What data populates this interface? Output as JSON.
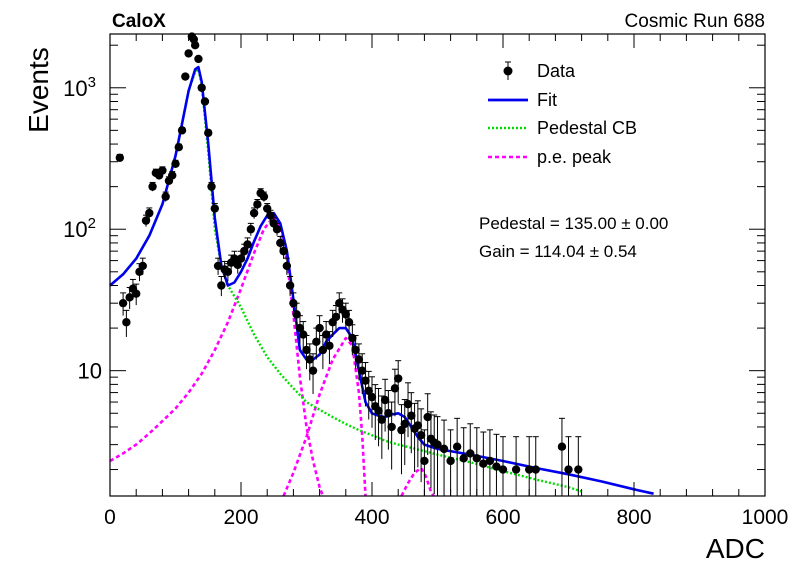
{
  "header": {
    "experiment": "CaloX",
    "run_label": "Cosmic Run 688"
  },
  "chart_data": {
    "type": "scatter",
    "title": "",
    "xlabel": "ADC",
    "ylabel": "Events",
    "xlim": [
      0,
      1000
    ],
    "ylim": [
      1.3,
      2400
    ],
    "y_scale": "log",
    "grid": false,
    "legend_position": "top-right",
    "x_ticks": [
      "0",
      "200",
      "400",
      "600",
      "800",
      "1000"
    ],
    "y_ticks": [
      "10",
      "10²",
      "10³"
    ],
    "y_tick_values": [
      10,
      100,
      1000
    ],
    "legend": [
      {
        "label": "Data",
        "style": "marker-with-errorbar",
        "color": "#000000"
      },
      {
        "label": "Fit",
        "style": "solid",
        "color": "#0000ee"
      },
      {
        "label": "Pedestal CB",
        "style": "dotted",
        "color": "#00dd00"
      },
      {
        "label": "p.e. peak",
        "style": "dashed",
        "color": "#ff00ff"
      }
    ],
    "annotations": {
      "pedestal": "Pedestal = 135.00 ± 0.00",
      "gain": "Gain = 114.04 ± 0.54"
    },
    "series": [
      {
        "name": "Data",
        "kind": "points",
        "points": [
          [
            15,
            320
          ],
          [
            20,
            30
          ],
          [
            25,
            22
          ],
          [
            30,
            33
          ],
          [
            35,
            38
          ],
          [
            40,
            35
          ],
          [
            45,
            50
          ],
          [
            50,
            55
          ],
          [
            55,
            115
          ],
          [
            60,
            130
          ],
          [
            65,
            200
          ],
          [
            70,
            250
          ],
          [
            75,
            240
          ],
          [
            80,
            260
          ],
          [
            85,
            170
          ],
          [
            90,
            220
          ],
          [
            95,
            240
          ],
          [
            100,
            290
          ],
          [
            105,
            380
          ],
          [
            110,
            500
          ],
          [
            115,
            1200
          ],
          [
            120,
            1750
          ],
          [
            125,
            2300
          ],
          [
            128,
            2200
          ],
          [
            130,
            2000
          ],
          [
            135,
            1600
          ],
          [
            140,
            1000
          ],
          [
            145,
            800
          ],
          [
            150,
            480
          ],
          [
            155,
            200
          ],
          [
            160,
            140
          ],
          [
            165,
            55
          ],
          [
            170,
            40
          ],
          [
            175,
            52
          ],
          [
            180,
            50
          ],
          [
            185,
            58
          ],
          [
            190,
            62
          ],
          [
            195,
            56
          ],
          [
            200,
            62
          ],
          [
            205,
            70
          ],
          [
            210,
            78
          ],
          [
            215,
            100
          ],
          [
            220,
            130
          ],
          [
            225,
            150
          ],
          [
            230,
            180
          ],
          [
            235,
            170
          ],
          [
            240,
            140
          ],
          [
            245,
            125
          ],
          [
            250,
            110
          ],
          [
            255,
            100
          ],
          [
            260,
            80
          ],
          [
            265,
            70
          ],
          [
            270,
            55
          ],
          [
            275,
            40
          ],
          [
            280,
            30
          ],
          [
            285,
            25
          ],
          [
            290,
            20
          ],
          [
            295,
            18
          ],
          [
            300,
            14
          ],
          [
            305,
            12
          ],
          [
            310,
            10
          ],
          [
            315,
            16
          ],
          [
            320,
            20
          ],
          [
            325,
            14
          ],
          [
            330,
            18
          ],
          [
            335,
            15
          ],
          [
            340,
            22
          ],
          [
            345,
            24
          ],
          [
            350,
            30
          ],
          [
            355,
            27
          ],
          [
            360,
            25
          ],
          [
            365,
            22
          ],
          [
            370,
            17
          ],
          [
            375,
            14
          ],
          [
            380,
            12
          ],
          [
            385,
            10
          ],
          [
            390,
            8.5
          ],
          [
            395,
            7.2
          ],
          [
            400,
            6.5
          ],
          [
            405,
            5.6
          ],
          [
            410,
            5.2
          ],
          [
            415,
            4.5
          ],
          [
            420,
            6.2
          ],
          [
            425,
            5.0
          ],
          [
            430,
            4.0
          ],
          [
            435,
            7.5
          ],
          [
            440,
            8.8
          ],
          [
            445,
            3.8
          ],
          [
            450,
            4.2
          ],
          [
            455,
            5.8
          ],
          [
            460,
            4.8
          ],
          [
            465,
            3.9
          ],
          [
            470,
            4.1
          ],
          [
            475,
            3.5
          ],
          [
            480,
            2.3
          ],
          [
            485,
            4.7
          ],
          [
            490,
            3.3
          ],
          [
            495,
            3.1
          ],
          [
            500,
            3.0
          ],
          [
            510,
            2.8
          ],
          [
            520,
            2.3
          ],
          [
            530,
            2.9
          ],
          [
            540,
            2.4
          ],
          [
            550,
            2.6
          ],
          [
            560,
            2.4
          ],
          [
            570,
            2.2
          ],
          [
            580,
            2.3
          ],
          [
            590,
            2.1
          ],
          [
            600,
            2.0
          ],
          [
            620,
            2.0
          ],
          [
            640,
            2.0
          ],
          [
            650,
            2.0
          ],
          [
            690,
            2.9
          ],
          [
            700,
            2.0
          ],
          [
            715,
            2.0
          ]
        ]
      },
      {
        "name": "Fit",
        "kind": "line",
        "points": [
          [
            0,
            40
          ],
          [
            20,
            48
          ],
          [
            40,
            62
          ],
          [
            60,
            90
          ],
          [
            80,
            150
          ],
          [
            100,
            330
          ],
          [
            110,
            560
          ],
          [
            120,
            950
          ],
          [
            130,
            1350
          ],
          [
            135,
            1400
          ],
          [
            140,
            1100
          ],
          [
            150,
            400
          ],
          [
            160,
            120
          ],
          [
            170,
            55
          ],
          [
            180,
            40
          ],
          [
            190,
            42
          ],
          [
            200,
            50
          ],
          [
            210,
            62
          ],
          [
            220,
            82
          ],
          [
            230,
            105
          ],
          [
            240,
            125
          ],
          [
            250,
            130
          ],
          [
            260,
            110
          ],
          [
            270,
            70
          ],
          [
            280,
            32
          ],
          [
            290,
            14
          ],
          [
            300,
            12
          ],
          [
            310,
            12
          ],
          [
            320,
            13
          ],
          [
            330,
            16
          ],
          [
            340,
            18
          ],
          [
            350,
            20
          ],
          [
            360,
            20
          ],
          [
            370,
            17
          ],
          [
            380,
            10
          ],
          [
            390,
            6
          ],
          [
            400,
            5
          ],
          [
            410,
            4.8
          ],
          [
            420,
            4.7
          ],
          [
            430,
            4.9
          ],
          [
            440,
            5.0
          ],
          [
            450,
            4.7
          ],
          [
            460,
            4.0
          ],
          [
            470,
            3.4
          ],
          [
            480,
            3.0
          ],
          [
            500,
            2.8
          ],
          [
            550,
            2.55
          ],
          [
            600,
            2.3
          ],
          [
            650,
            2.05
          ],
          [
            700,
            1.85
          ],
          [
            750,
            1.65
          ],
          [
            800,
            1.45
          ],
          [
            830,
            1.35
          ]
        ]
      },
      {
        "name": "Pedestal CB",
        "kind": "line",
        "points": [
          [
            0,
            40
          ],
          [
            20,
            48
          ],
          [
            40,
            62
          ],
          [
            60,
            90
          ],
          [
            80,
            150
          ],
          [
            100,
            330
          ],
          [
            110,
            560
          ],
          [
            120,
            950
          ],
          [
            130,
            1300
          ],
          [
            135,
            1350
          ],
          [
            140,
            1050
          ],
          [
            150,
            350
          ],
          [
            160,
            100
          ],
          [
            170,
            55
          ],
          [
            180,
            40
          ],
          [
            200,
            28
          ],
          [
            220,
            18
          ],
          [
            240,
            12.5
          ],
          [
            260,
            9.5
          ],
          [
            280,
            7.5
          ],
          [
            300,
            6
          ],
          [
            320,
            5.3
          ],
          [
            340,
            4.7
          ],
          [
            360,
            4.2
          ],
          [
            380,
            3.8
          ],
          [
            400,
            3.5
          ],
          [
            420,
            3.2
          ],
          [
            440,
            3.0
          ],
          [
            460,
            2.85
          ],
          [
            480,
            2.7
          ],
          [
            500,
            2.55
          ],
          [
            550,
            2.25
          ],
          [
            600,
            1.95
          ],
          [
            650,
            1.7
          ],
          [
            700,
            1.5
          ],
          [
            720,
            1.4
          ]
        ]
      },
      {
        "name": "p.e. peak",
        "kind": "line",
        "points": [
          [
            0,
            2.3
          ],
          [
            20,
            2.6
          ],
          [
            40,
            3.0
          ],
          [
            60,
            3.6
          ],
          [
            80,
            4.4
          ],
          [
            100,
            5.4
          ],
          [
            120,
            7
          ],
          [
            140,
            9.5
          ],
          [
            160,
            14
          ],
          [
            180,
            22
          ],
          [
            200,
            38
          ],
          [
            220,
            68
          ],
          [
            235,
            100
          ],
          [
            250,
            123
          ],
          [
            260,
            105
          ],
          [
            270,
            60
          ],
          [
            280,
            25
          ],
          [
            290,
            9
          ],
          [
            300,
            4
          ],
          [
            310,
            2.3
          ],
          [
            320,
            1.5
          ],
          [
            325,
            1.3
          ]
        ]
      },
      {
        "name": "p.e. peak",
        "kind": "line",
        "points": [
          [
            265,
            1.3
          ],
          [
            280,
            1.9
          ],
          [
            300,
            3.4
          ],
          [
            320,
            6.8
          ],
          [
            340,
            12
          ],
          [
            360,
            17
          ],
          [
            370,
            15
          ],
          [
            380,
            7
          ],
          [
            385,
            3.5
          ],
          [
            390,
            1.3
          ]
        ]
      },
      {
        "name": "p.e. peak",
        "kind": "line",
        "points": [
          [
            445,
            1.3
          ],
          [
            455,
            1.6
          ],
          [
            465,
            1.9
          ],
          [
            475,
            2.05
          ],
          [
            482,
            1.8
          ],
          [
            490,
            1.4
          ],
          [
            494,
            1.3
          ]
        ]
      }
    ]
  }
}
